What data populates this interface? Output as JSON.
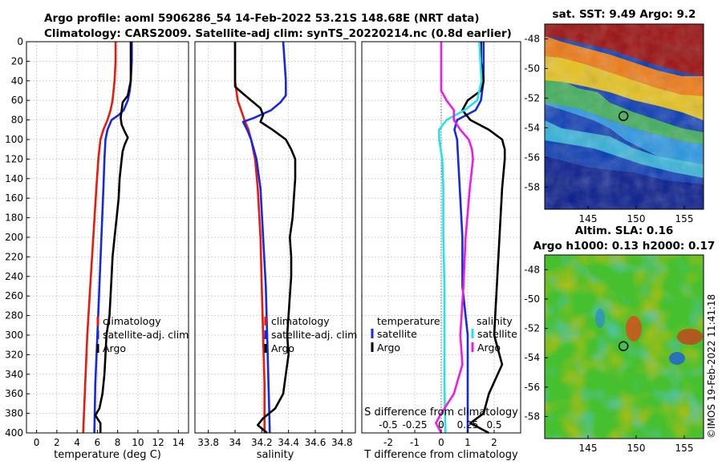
{
  "header": {
    "line1": "Argo profile: aoml 5906286_54 14-Feb-2022 53.21S 148.68E (NRT data)",
    "line2": "Climatology: CARS2009. Satellite-adj clim: synTS_20220214.nc (0.8d earlier)"
  },
  "colors": {
    "climatology": "#e81a0c",
    "satellite": "#1428e6",
    "argo": "#000000",
    "salinity_argo": "#ee1be8",
    "salinity_sat": "#23e3e6"
  },
  "chart_data": [
    {
      "id": "temperature",
      "type": "line",
      "xlabel": "temperature (deg C)",
      "ylabel": "",
      "xlim": [
        -1,
        15
      ],
      "ylim": [
        400,
        0
      ],
      "xticks": [
        0,
        2,
        4,
        6,
        8,
        10,
        12,
        14
      ],
      "xtick_labels": [
        "0",
        "2",
        "4",
        "6",
        "8",
        "10",
        "12",
        "14"
      ],
      "yticks": [
        0,
        20,
        40,
        60,
        80,
        100,
        120,
        140,
        160,
        180,
        200,
        220,
        240,
        260,
        280,
        300,
        320,
        340,
        360,
        380,
        400
      ],
      "grid": true,
      "legend": {
        "location": "bottom-right",
        "entries": [
          "climatology",
          "satellite-adj. clim",
          "Argo"
        ]
      },
      "series": [
        {
          "name": "climatology",
          "color": "#e81a0c",
          "depth": [
            0,
            20,
            40,
            60,
            70,
            80,
            90,
            100,
            120,
            150,
            200,
            250,
            300,
            350,
            400
          ],
          "values": [
            7.8,
            7.8,
            7.7,
            7.5,
            7.3,
            7.0,
            6.6,
            6.3,
            6.1,
            5.9,
            5.6,
            5.3,
            5.0,
            4.8,
            4.6
          ]
        },
        {
          "name": "satellite-adj. clim",
          "color": "#1428e6",
          "depth": [
            0,
            20,
            40,
            50,
            60,
            70,
            75,
            80,
            90,
            100,
            120,
            150,
            200,
            250,
            300,
            350,
            400
          ],
          "values": [
            9.4,
            9.4,
            9.3,
            9.2,
            9.0,
            8.6,
            8.1,
            7.4,
            7.0,
            6.8,
            6.7,
            6.6,
            6.4,
            6.2,
            6.0,
            5.8,
            5.7
          ]
        },
        {
          "name": "Argo",
          "color": "#000000",
          "depth": [
            0,
            20,
            40,
            55,
            62,
            70,
            78,
            85,
            92,
            98,
            105,
            112,
            120,
            140,
            160,
            180,
            200,
            220,
            240,
            260,
            280,
            300,
            320,
            340,
            360,
            375,
            382,
            390,
            400
          ],
          "values": [
            9.3,
            9.3,
            9.3,
            9.0,
            8.5,
            8.4,
            8.3,
            8.4,
            8.7,
            9.0,
            8.7,
            8.5,
            8.4,
            8.2,
            8.1,
            7.9,
            7.7,
            7.5,
            7.4,
            7.3,
            7.2,
            6.9,
            6.8,
            6.7,
            6.5,
            6.2,
            5.8,
            6.3,
            6.3
          ]
        }
      ]
    },
    {
      "id": "salinity",
      "type": "line",
      "xlabel": "salinity",
      "ylabel": "",
      "xlim": [
        33.7,
        34.9
      ],
      "ylim": [
        400,
        0
      ],
      "xticks": [
        33.8,
        34.0,
        34.2,
        34.4,
        34.6,
        34.8
      ],
      "xtick_labels": [
        "33.8",
        "34",
        "34.2",
        "34.4",
        "34.6",
        "34.8"
      ],
      "grid": true,
      "legend": {
        "location": "bottom-right",
        "entries": [
          "climatology",
          "satellite-adj. clim",
          "Argo"
        ]
      },
      "series": [
        {
          "name": "climatology",
          "color": "#e81a0c",
          "depth": [
            0,
            20,
            40,
            60,
            80,
            90,
            100,
            120,
            150,
            200,
            250,
            300,
            350,
            400
          ],
          "values": [
            34.0,
            34.0,
            34.0,
            34.02,
            34.07,
            34.1,
            34.12,
            34.15,
            34.17,
            34.19,
            34.2,
            34.21,
            34.22,
            34.22
          ]
        },
        {
          "name": "satellite-adj. clim",
          "color": "#1428e6",
          "depth": [
            0,
            20,
            40,
            55,
            62,
            70,
            78,
            82,
            90,
            100,
            120,
            150,
            200,
            250,
            300,
            350,
            400
          ],
          "values": [
            34.36,
            34.37,
            34.38,
            34.38,
            34.34,
            34.27,
            34.14,
            34.06,
            34.09,
            34.12,
            34.16,
            34.19,
            34.21,
            34.23,
            34.24,
            34.25,
            34.26
          ]
        },
        {
          "name": "Argo",
          "color": "#000000",
          "depth": [
            0,
            20,
            40,
            46,
            52,
            60,
            68,
            75,
            82,
            90,
            100,
            110,
            120,
            140,
            160,
            180,
            200,
            220,
            240,
            260,
            280,
            300,
            320,
            340,
            360,
            375,
            385,
            392,
            400
          ],
          "values": [
            34.0,
            34.0,
            34.0,
            34.0,
            34.05,
            34.12,
            34.19,
            34.21,
            34.19,
            34.28,
            34.38,
            34.42,
            34.45,
            34.45,
            34.44,
            34.43,
            34.41,
            34.42,
            34.42,
            34.41,
            34.4,
            34.39,
            34.4,
            34.38,
            34.36,
            34.3,
            34.21,
            34.17,
            34.24
          ]
        }
      ]
    },
    {
      "id": "difference",
      "type": "line",
      "xlabel": "T difference from climatology",
      "xlabel2": "S difference from climatology",
      "xlim": [
        -3,
        3
      ],
      "ylim": [
        400,
        0
      ],
      "xticks": [
        -2,
        -1,
        0,
        1,
        2
      ],
      "xtick_labels": [
        "-2",
        "-1",
        "0",
        "1",
        "2"
      ],
      "xticks_top_labels": [
        "-0.5",
        "-0.25",
        "0",
        "0.25",
        "0.5"
      ],
      "grid": true,
      "legend_temperature": {
        "title": "temperature",
        "entries": [
          "satellite",
          "Argo"
        ]
      },
      "legend_salinity": {
        "title": "salinity",
        "entries": [
          "satellite",
          "Argo"
        ]
      },
      "series": [
        {
          "name": "temperature satellite",
          "color": "#1428e6",
          "depth": [
            0,
            20,
            40,
            60,
            70,
            80,
            90,
            100,
            150,
            200,
            250,
            300,
            350,
            400
          ],
          "values": [
            1.6,
            1.6,
            1.6,
            1.5,
            1.3,
            0.6,
            0.5,
            0.6,
            0.7,
            0.8,
            0.8,
            1.0,
            1.0,
            1.0
          ]
        },
        {
          "name": "temperature Argo",
          "color": "#000000",
          "depth": [
            0,
            20,
            40,
            50,
            60,
            70,
            80,
            90,
            100,
            110,
            120,
            150,
            200,
            250,
            300,
            330,
            360,
            380,
            390,
            400
          ],
          "values": [
            1.5,
            1.5,
            1.6,
            1.5,
            1.0,
            0.8,
            1.1,
            1.8,
            2.3,
            2.4,
            2.4,
            2.3,
            2.2,
            2.1,
            2.0,
            2.3,
            1.8,
            1.6,
            1.1,
            1.8
          ]
        },
        {
          "name": "salinity satellite",
          "color": "#23e3e6",
          "depth": [
            0,
            20,
            40,
            60,
            70,
            80,
            90,
            100,
            120,
            150,
            200,
            250,
            300,
            350,
            400
          ],
          "values": [
            0.36,
            0.37,
            0.38,
            0.34,
            0.22,
            0.05,
            -0.02,
            -0.02,
            0.01,
            0.02,
            0.02,
            0.03,
            0.03,
            0.03,
            0.04
          ]
        },
        {
          "name": "salinity Argo",
          "color": "#ee1be8",
          "depth": [
            0,
            20,
            40,
            50,
            60,
            70,
            80,
            90,
            100,
            110,
            120,
            150,
            200,
            250,
            300,
            330,
            360,
            380,
            390,
            400
          ],
          "values": [
            0.0,
            0.0,
            0.0,
            0.0,
            0.05,
            0.12,
            0.12,
            0.18,
            0.26,
            0.29,
            0.3,
            0.27,
            0.23,
            0.21,
            0.18,
            0.2,
            0.12,
            0.0,
            -0.05,
            0.0
          ]
        }
      ]
    },
    {
      "id": "sst_map",
      "type": "heatmap",
      "title": "sat. SST: 9.49 Argo: 9.2",
      "xlim": [
        140.5,
        157
      ],
      "ylim": [
        -59.5,
        -47
      ],
      "xticks": [
        145,
        150,
        155
      ],
      "xtick_labels": [
        "145",
        "150",
        "155"
      ],
      "yticks": [
        -48,
        -50,
        -52,
        -54,
        -56,
        -58
      ],
      "ytick_labels": [
        "-48",
        "-50",
        "-52",
        "-54",
        "-56",
        "-58"
      ],
      "marker": {
        "lon": 148.68,
        "lat": -53.21
      }
    },
    {
      "id": "sla_map",
      "type": "heatmap",
      "title": "Altim. SLA: 0.16",
      "subtitle": "Argo h1000: 0.13 h2000: 0.17",
      "xlim": [
        140.5,
        157
      ],
      "ylim": [
        -59.5,
        -47
      ],
      "xticks": [
        145,
        150,
        155
      ],
      "xtick_labels": [
        "145",
        "150",
        "155"
      ],
      "yticks": [
        -48,
        -50,
        -52,
        -54,
        -56,
        -58
      ],
      "ytick_labels": [
        "-48",
        "-50",
        "-52",
        "-54",
        "-56",
        "-58"
      ],
      "marker": {
        "lon": 148.68,
        "lat": -53.21
      }
    }
  ],
  "credit": "©IMOS 19-Feb-2022 11:41:18"
}
